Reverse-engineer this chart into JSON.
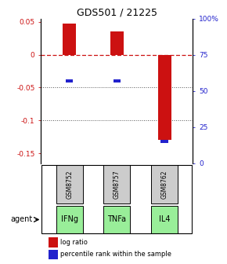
{
  "title": "GDS501 / 21225",
  "samples": [
    "GSM8752",
    "GSM8757",
    "GSM8762"
  ],
  "agents": [
    "IFNg",
    "TNFa",
    "IL4"
  ],
  "log_ratios": [
    0.047,
    0.035,
    -0.13
  ],
  "percentile_ranks": [
    0.57,
    0.57,
    0.15
  ],
  "ylim_left": [
    -0.165,
    0.055
  ],
  "ylim_right": [
    0.0,
    1.0
  ],
  "yticks_left": [
    0.05,
    0.0,
    -0.05,
    -0.1,
    -0.15
  ],
  "ytick_labels_left": [
    "0.05",
    "0",
    "-0.05",
    "-0.1",
    "-0.15"
  ],
  "yticks_right": [
    1.0,
    0.75,
    0.5,
    0.25,
    0.0
  ],
  "ytick_labels_right": [
    "100%",
    "75",
    "50",
    "25",
    "0"
  ],
  "bar_color": "#cc1111",
  "percentile_color": "#2222cc",
  "agent_color": "#99ee99",
  "sample_color": "#cccccc",
  "zero_line_color": "#cc1111",
  "grid_color": "#555555",
  "bar_width": 0.28,
  "figsize": [
    2.9,
    3.36
  ],
  "dpi": 100
}
